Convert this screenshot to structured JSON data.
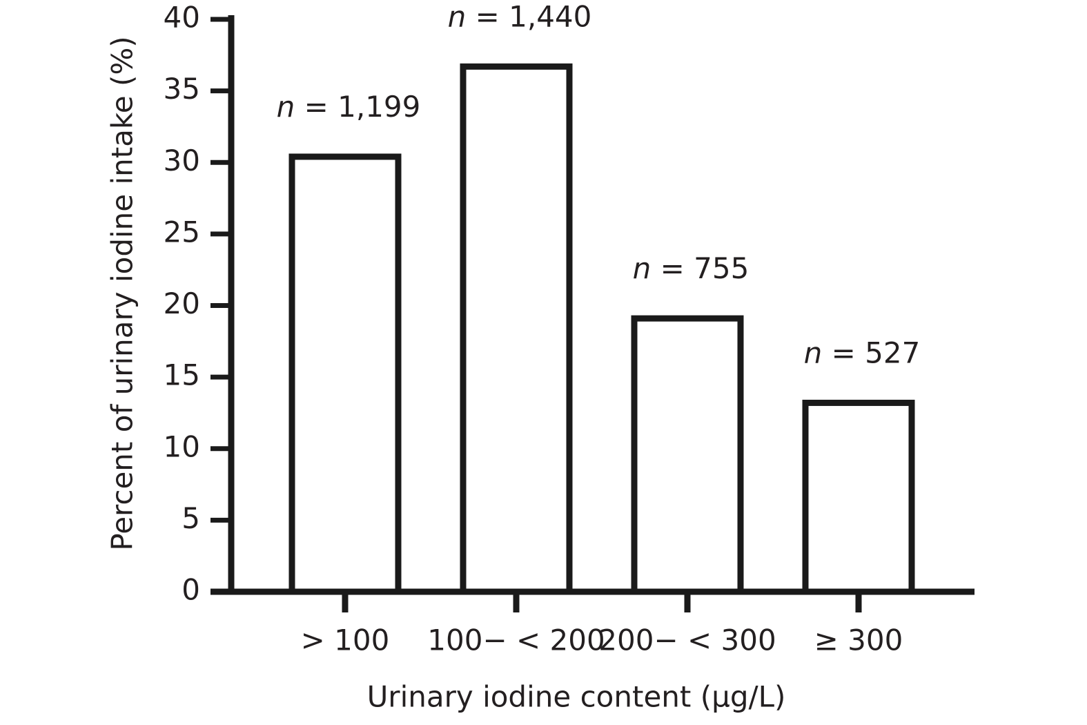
{
  "chart_data": {
    "type": "bar",
    "x_label": "Urinary iodine content (μg/L)",
    "y_label": "Percent of urinary iodine intake (%)",
    "categories": [
      "> 100",
      "100− < 200",
      "200− < 300",
      "≥ 300"
    ],
    "values": [
      30.4,
      36.7,
      19.1,
      13.2
    ],
    "annotations": [
      "n = 1,199",
      "n = 1,440",
      "n = 755",
      "n = 527"
    ],
    "color": "#ffffff",
    "edgecolor": "#1a1a1a",
    "ylim": [
      0,
      40
    ],
    "yticks": [
      0,
      5,
      10,
      15,
      20,
      25,
      30,
      35,
      40
    ],
    "grid": false
  }
}
